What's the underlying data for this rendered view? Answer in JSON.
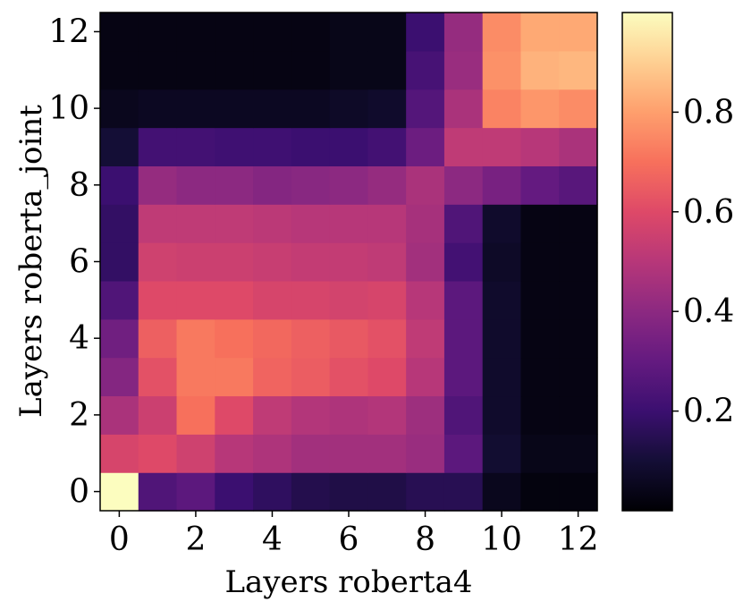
{
  "chart_data": {
    "type": "heatmap",
    "xlabel": "Layers roberta4",
    "ylabel": "Layers roberta_joint",
    "x_categories": [
      0,
      1,
      2,
      3,
      4,
      5,
      6,
      7,
      8,
      9,
      10,
      11,
      12
    ],
    "y_categories": [
      0,
      1,
      2,
      3,
      4,
      5,
      6,
      7,
      8,
      9,
      10,
      11,
      12
    ],
    "x_tick_labels": [
      "0",
      "2",
      "4",
      "6",
      "8",
      "10",
      "12"
    ],
    "y_tick_labels": [
      "0",
      "2",
      "4",
      "6",
      "8",
      "10",
      "12"
    ],
    "colormap": "magma",
    "color_range": [
      0,
      1.0
    ],
    "colorbar_ticks": [
      "0.2",
      "0.4",
      "0.6",
      "0.8"
    ],
    "colorbar_tick_values": [
      0.2,
      0.4,
      0.6,
      0.8
    ],
    "note_rows": "values[i] is row for y = i (0 = bottom), columns x = 0..12",
    "values": [
      [
        1.0,
        0.25,
        0.28,
        0.2,
        0.17,
        0.14,
        0.13,
        0.13,
        0.15,
        0.15,
        0.05,
        0.02,
        0.02
      ],
      [
        0.58,
        0.6,
        0.56,
        0.5,
        0.48,
        0.45,
        0.45,
        0.45,
        0.43,
        0.28,
        0.09,
        0.04,
        0.04
      ],
      [
        0.47,
        0.55,
        0.7,
        0.6,
        0.52,
        0.49,
        0.48,
        0.49,
        0.44,
        0.25,
        0.08,
        0.03,
        0.03
      ],
      [
        0.38,
        0.62,
        0.72,
        0.72,
        0.67,
        0.65,
        0.62,
        0.6,
        0.5,
        0.28,
        0.08,
        0.03,
        0.03
      ],
      [
        0.33,
        0.66,
        0.72,
        0.7,
        0.68,
        0.66,
        0.64,
        0.62,
        0.52,
        0.28,
        0.08,
        0.03,
        0.03
      ],
      [
        0.25,
        0.6,
        0.6,
        0.6,
        0.58,
        0.58,
        0.57,
        0.58,
        0.5,
        0.28,
        0.08,
        0.03,
        0.03
      ],
      [
        0.18,
        0.56,
        0.55,
        0.55,
        0.54,
        0.53,
        0.53,
        0.52,
        0.45,
        0.22,
        0.07,
        0.03,
        0.03
      ],
      [
        0.18,
        0.52,
        0.52,
        0.52,
        0.51,
        0.5,
        0.5,
        0.5,
        0.46,
        0.25,
        0.08,
        0.03,
        0.03
      ],
      [
        0.2,
        0.42,
        0.4,
        0.4,
        0.38,
        0.39,
        0.4,
        0.42,
        0.47,
        0.4,
        0.35,
        0.3,
        0.27
      ],
      [
        0.1,
        0.22,
        0.22,
        0.21,
        0.21,
        0.2,
        0.2,
        0.22,
        0.32,
        0.52,
        0.52,
        0.5,
        0.47
      ],
      [
        0.05,
        0.06,
        0.06,
        0.06,
        0.06,
        0.06,
        0.07,
        0.08,
        0.26,
        0.47,
        0.74,
        0.78,
        0.76
      ],
      [
        0.03,
        0.03,
        0.03,
        0.03,
        0.03,
        0.03,
        0.04,
        0.04,
        0.23,
        0.43,
        0.77,
        0.84,
        0.85
      ],
      [
        0.03,
        0.03,
        0.03,
        0.03,
        0.03,
        0.03,
        0.04,
        0.04,
        0.2,
        0.42,
        0.76,
        0.82,
        0.82
      ]
    ]
  }
}
